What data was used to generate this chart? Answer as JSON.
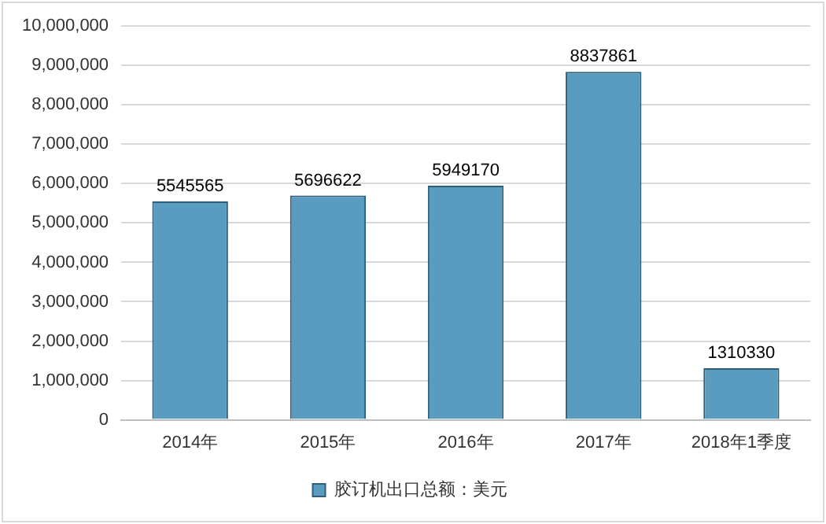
{
  "chart_data": {
    "type": "bar",
    "categories": [
      "2014年",
      "2015年",
      "2016年",
      "2017年",
      "2018年1季度"
    ],
    "series": [
      {
        "name": "胶订机出口总额：美元",
        "color": "#5a9cbf",
        "values": [
          5545565,
          5696622,
          5949170,
          8837861,
          1310330
        ]
      }
    ],
    "ylim": [
      0,
      10000000
    ],
    "yticks": [
      0,
      {
        "value": 1000000,
        "label": "1,000,000"
      },
      {
        "value": 2000000,
        "label": "2,000,000"
      },
      {
        "value": 3000000,
        "label": "3,000,000"
      },
      {
        "value": 4000000,
        "label": "4,000,000"
      },
      {
        "value": 5000000,
        "label": "5,000,000"
      },
      {
        "value": 6000000,
        "label": "6,000,000"
      },
      {
        "value": 7000000,
        "label": "7,000,000"
      },
      {
        "value": 8000000,
        "label": "8,000,000"
      },
      {
        "value": 9000000,
        "label": "9,000,000"
      },
      {
        "value": 10000000,
        "label": "10,000,000"
      }
    ],
    "grid": "y",
    "legend": "bottom",
    "data_labels": true
  }
}
